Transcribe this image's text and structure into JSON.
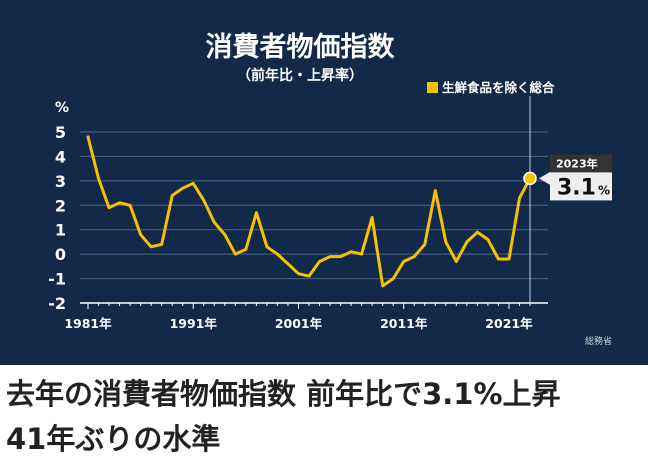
{
  "colors": {
    "panel_background": "#12294a",
    "series": "#f5c200",
    "axis": "#ffffff",
    "grid": "#4a6386",
    "text": "#ffffff",
    "callout_background": "#eeeeee",
    "callout_header": "#333333"
  },
  "chart_data": {
    "type": "line",
    "title": "消費者物価指数",
    "subtitle": "（前年比・上昇率）",
    "ylabel": "%",
    "source": "総務省",
    "ylim": [
      -2,
      5
    ],
    "xlim": [
      1981,
      2023
    ],
    "yticks": [
      "5",
      "4",
      "3",
      "2",
      "1",
      "0",
      "-1",
      "-2"
    ],
    "ytick_values": [
      5,
      4,
      3,
      2,
      1,
      0,
      -1,
      -2
    ],
    "xticks": [
      "1981年",
      "1991年",
      "2001年",
      "2011年",
      "2021年"
    ],
    "xtick_values": [
      1981,
      1991,
      2001,
      2011,
      2021
    ],
    "grid": true,
    "legend": {
      "position": "top-right",
      "entries": [
        "生鮮食品を除く総合"
      ]
    },
    "series": [
      {
        "name": "生鮮食品を除く総合",
        "x": [
          1981,
          1982,
          1983,
          1984,
          1985,
          1986,
          1987,
          1988,
          1989,
          1990,
          1991,
          1992,
          1993,
          1994,
          1995,
          1996,
          1997,
          1998,
          1999,
          2000,
          2001,
          2002,
          2003,
          2004,
          2005,
          2006,
          2007,
          2008,
          2009,
          2010,
          2011,
          2012,
          2013,
          2014,
          2015,
          2016,
          2017,
          2018,
          2019,
          2020,
          2021,
          2022,
          2023
        ],
        "values": [
          4.8,
          3.1,
          1.9,
          2.1,
          2.0,
          0.8,
          0.3,
          0.4,
          2.4,
          2.7,
          2.9,
          2.2,
          1.3,
          0.8,
          0.0,
          0.2,
          1.7,
          0.3,
          0.0,
          -0.4,
          -0.8,
          -0.9,
          -0.3,
          -0.1,
          -0.1,
          0.1,
          0.0,
          1.5,
          -1.3,
          -1.0,
          -0.3,
          -0.1,
          0.4,
          2.6,
          0.5,
          -0.3,
          0.5,
          0.9,
          0.6,
          -0.2,
          -0.2,
          2.3,
          3.1
        ]
      }
    ],
    "highlight": {
      "x": 2023,
      "year_label": "2023年",
      "value_text": "3.1",
      "unit": "%"
    }
  },
  "headline": {
    "line1": "去年の消費者物価指数 前年比で3.1%上昇",
    "line2": "41年ぶりの水準"
  }
}
